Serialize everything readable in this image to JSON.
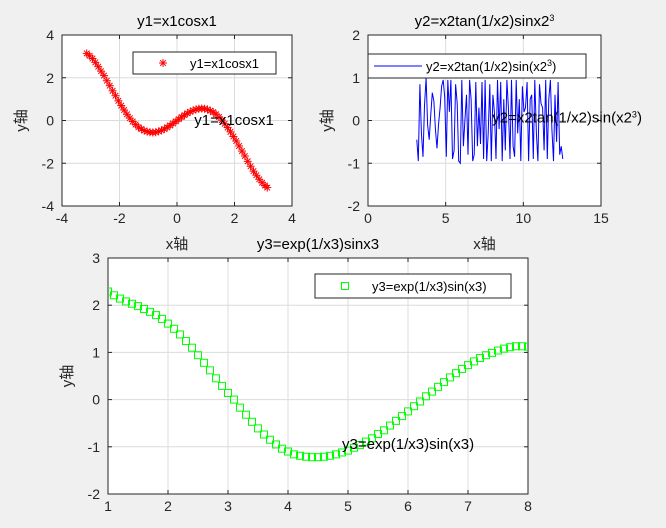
{
  "chart_data": [
    {
      "type": "scatter",
      "title": "y1=x1cosx1",
      "xlabel": "x轴",
      "ylabel": "y轴",
      "xlim": [
        -4,
        4
      ],
      "ylim": [
        -4,
        4
      ],
      "xticks": [
        "-4",
        "-2",
        "0",
        "2",
        "4"
      ],
      "yticks": [
        "-4",
        "-2",
        "0",
        "2",
        "4"
      ],
      "grid": true,
      "legend_position": "top-right",
      "annotation": {
        "text": "y1=x1cosx1",
        "x": 0.6,
        "y": -0.2
      },
      "series": [
        {
          "name": "y1=x1cosx1",
          "marker": "asterisk",
          "color": "#ff0000",
          "x": [
            -3.14,
            -3.04,
            -2.94,
            -2.84,
            -2.74,
            -2.64,
            -2.54,
            -2.44,
            -2.34,
            -2.24,
            -2.14,
            -2.04,
            -1.94,
            -1.84,
            -1.74,
            -1.64,
            -1.54,
            -1.44,
            -1.34,
            -1.24,
            -1.14,
            -1.04,
            -0.94,
            -0.84,
            -0.74,
            -0.64,
            -0.54,
            -0.44,
            -0.34,
            -0.24,
            -0.14,
            -0.04,
            0.06,
            0.16,
            0.26,
            0.36,
            0.46,
            0.56,
            0.66,
            0.76,
            0.86,
            0.96,
            1.06,
            1.16,
            1.26,
            1.36,
            1.46,
            1.56,
            1.66,
            1.76,
            1.86,
            1.96,
            2.06,
            2.16,
            2.26,
            2.36,
            2.46,
            2.56,
            2.66,
            2.76,
            2.86,
            2.96,
            3.06,
            3.14
          ],
          "y": [
            3.14,
            3.03,
            2.9,
            2.72,
            2.52,
            2.31,
            2.1,
            1.86,
            1.63,
            1.39,
            1.16,
            0.92,
            0.7,
            0.49,
            0.29,
            0.11,
            -0.05,
            -0.19,
            -0.31,
            -0.4,
            -0.47,
            -0.52,
            -0.55,
            -0.56,
            -0.55,
            -0.51,
            -0.46,
            -0.4,
            -0.32,
            -0.23,
            -0.14,
            -0.04,
            0.06,
            0.16,
            0.25,
            0.34,
            0.41,
            0.47,
            0.52,
            0.55,
            0.56,
            0.55,
            0.52,
            0.46,
            0.39,
            0.29,
            0.16,
            0.02,
            -0.15,
            -0.33,
            -0.53,
            -0.75,
            -0.96,
            -1.19,
            -1.43,
            -1.66,
            -1.91,
            -2.14,
            -2.37,
            -2.56,
            -2.75,
            -2.91,
            -3.04,
            -3.14
          ]
        }
      ]
    },
    {
      "type": "line",
      "title": "y2=x2tan(1/x2)sinx2",
      "title_sup": "3",
      "xlabel": "x轴",
      "ylabel": "y轴",
      "xlim": [
        0,
        15
      ],
      "ylim": [
        -2,
        2
      ],
      "xticks": [
        "0",
        "5",
        "10",
        "15"
      ],
      "yticks": [
        "-2",
        "-1",
        "0",
        "1",
        "2"
      ],
      "grid": true,
      "legend_position": "top",
      "annotation": {
        "text": "y2=x2tan(1/x2)sin(x2",
        "sup": "3",
        "close": ")",
        "x": 8.0,
        "y": -0.05
      },
      "series": [
        {
          "name": "y2=x2tan(1/x2)sin(x2",
          "name_sup": "3",
          "name_close": ")",
          "color": "#0000ff",
          "x": [
            3.14,
            3.24,
            3.34,
            3.44,
            3.54,
            3.64,
            3.74,
            3.84,
            3.94,
            4.04,
            4.14,
            4.24,
            4.34,
            4.44,
            4.54,
            4.64,
            4.74,
            4.84,
            4.94,
            5.04,
            5.14,
            5.24,
            5.34,
            5.44,
            5.54,
            5.64,
            5.74,
            5.84,
            5.94,
            6.04,
            6.14,
            6.24,
            6.34,
            6.44,
            6.54,
            6.64,
            6.74,
            6.84,
            6.94,
            7.04,
            7.14,
            7.24,
            7.34,
            7.44,
            7.54,
            7.64,
            7.74,
            7.84,
            7.94,
            8.04,
            8.14,
            8.24,
            8.34,
            8.44,
            8.54,
            8.64,
            8.74,
            8.84,
            8.94,
            9.04,
            9.14,
            9.24,
            9.34,
            9.44,
            9.54,
            9.64,
            9.74,
            9.84,
            9.94,
            10.04,
            10.14,
            10.24,
            10.34,
            10.44,
            10.54,
            10.64,
            10.74,
            10.84,
            10.94,
            11.04,
            11.14,
            11.24,
            11.34,
            11.44,
            11.54,
            11.64,
            11.74,
            11.84,
            11.94,
            12.04,
            12.14,
            12.24,
            12.34,
            12.44,
            12.54
          ],
          "y": [
            -0.45,
            -0.95,
            0.85,
            -0.3,
            -0.85,
            0.35,
            1.0,
            -0.1,
            -0.45,
            0.15,
            0.65,
            0.45,
            -0.2,
            -0.65,
            -0.1,
            0.3,
            0.8,
            0.95,
            0.55,
            -0.85,
            0.95,
            0.2,
            0.95,
            -0.9,
            -0.7,
            0.85,
            0.4,
            -0.95,
            -1.0,
            0.95,
            -0.6,
            0.0,
            0.6,
            -0.8,
            0.95,
            0.5,
            -0.95,
            -0.8,
            0.9,
            -0.6,
            0.3,
            -0.55,
            0.9,
            -0.9,
            0.95,
            -0.95,
            -0.3,
            0.85,
            -0.95,
            0.6,
            0.2,
            -0.9,
            0.95,
            -0.2,
            0.9,
            -0.95,
            0.5,
            -0.7,
            0.95,
            0.3,
            -0.9,
            0.95,
            -0.6,
            -0.85,
            0.95,
            -0.3,
            0.5,
            -0.95,
            0.8,
            0.2,
            0.3,
            0.9,
            -0.95,
            0.5,
            0.6,
            -0.9,
            0.95,
            -0.3,
            -0.95,
            0.85,
            0.4,
            0.3,
            -0.7,
            0.95,
            -0.9,
            0.5,
            0.95,
            -0.2,
            -0.95,
            0.6,
            -0.5,
            0.9,
            -0.8,
            -0.6,
            -0.9
          ]
        }
      ]
    },
    {
      "type": "scatter",
      "title": "y3=exp(1/x3)sinx3",
      "xlabel": "",
      "ylabel": "y轴",
      "xlim": [
        1,
        8
      ],
      "ylim": [
        -2,
        3
      ],
      "xticks": [
        "1",
        "2",
        "3",
        "4",
        "5",
        "6",
        "7",
        "8"
      ],
      "yticks": [
        "-2",
        "-1",
        "0",
        "1",
        "2",
        "3"
      ],
      "grid": true,
      "legend_position": "top-right",
      "annotation": {
        "text": "y3=exp(1/x3)sin(x3)",
        "x": 4.9,
        "y": -1.05
      },
      "series": [
        {
          "name": "y3=exp(1/x3)sin(x3)",
          "marker": "square",
          "color": "#00ff00",
          "x": [
            1.0,
            1.1,
            1.2,
            1.3,
            1.4,
            1.5,
            1.6,
            1.7,
            1.8,
            1.9,
            2.0,
            2.1,
            2.2,
            2.3,
            2.4,
            2.5,
            2.6,
            2.7,
            2.8,
            2.9,
            3.0,
            3.1,
            3.2,
            3.3,
            3.4,
            3.5,
            3.6,
            3.7,
            3.8,
            3.9,
            4.0,
            4.1,
            4.2,
            4.3,
            4.4,
            4.5,
            4.6,
            4.7,
            4.8,
            4.9,
            5.0,
            5.1,
            5.2,
            5.3,
            5.4,
            5.5,
            5.6,
            5.7,
            5.8,
            5.9,
            6.0,
            6.1,
            6.2,
            6.3,
            6.4,
            6.5,
            6.6,
            6.7,
            6.8,
            6.9,
            7.0,
            7.1,
            7.2,
            7.3,
            7.4,
            7.5,
            7.6,
            7.7,
            7.8,
            7.9,
            8.0
          ],
          "y": [
            2.29,
            2.21,
            2.14,
            2.08,
            2.03,
            1.98,
            1.92,
            1.86,
            1.79,
            1.71,
            1.61,
            1.5,
            1.38,
            1.24,
            1.1,
            0.94,
            0.78,
            0.62,
            0.45,
            0.29,
            0.14,
            0.0,
            -0.17,
            -0.32,
            -0.47,
            -0.61,
            -0.74,
            -0.85,
            -0.95,
            -1.04,
            -1.1,
            -1.16,
            -1.19,
            -1.21,
            -1.22,
            -1.22,
            -1.21,
            -1.19,
            -1.16,
            -1.12,
            -1.08,
            -1.02,
            -0.96,
            -0.89,
            -0.82,
            -0.73,
            -0.65,
            -0.55,
            -0.45,
            -0.35,
            -0.25,
            -0.14,
            -0.04,
            0.07,
            0.17,
            0.27,
            0.37,
            0.47,
            0.56,
            0.65,
            0.73,
            0.81,
            0.88,
            0.94,
            0.99,
            1.04,
            1.08,
            1.11,
            1.13,
            1.13,
            1.12
          ]
        }
      ]
    }
  ]
}
